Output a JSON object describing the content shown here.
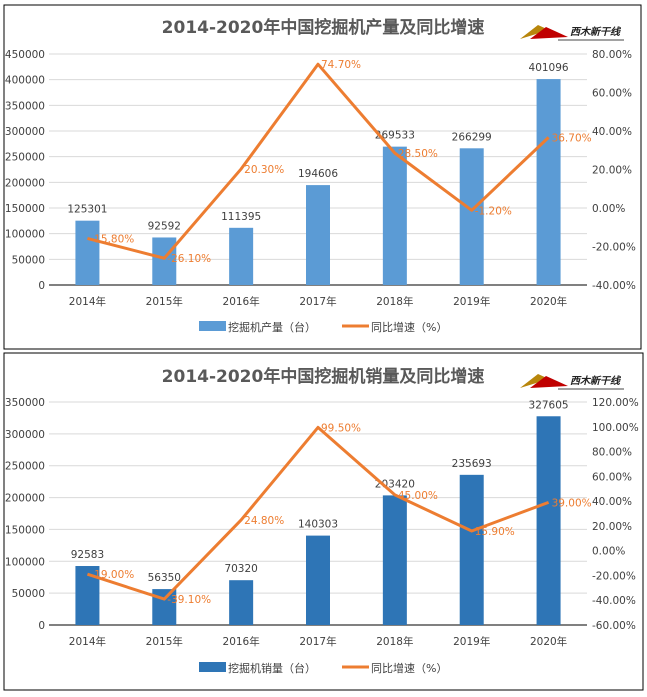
{
  "colors": {
    "bar1": "#5b9bd5",
    "bar2": "#2e75b6",
    "line": "#ed7d31",
    "grid": "#d9d9d9",
    "text": "#404040",
    "title": "#595959"
  },
  "logo_text": "西木新干线",
  "chart_data": [
    {
      "type": "bar",
      "title": "2014-2020年中国挖掘机产量及同比增速",
      "categories": [
        "2014年",
        "2015年",
        "2016年",
        "2017年",
        "2018年",
        "2019年",
        "2020年"
      ],
      "series": [
        {
          "name": "挖掘机产量（台）",
          "type": "bar",
          "axis": "left",
          "values": [
            125301,
            92592,
            111395,
            194606,
            269533,
            266299,
            401096
          ],
          "labels": [
            "125301",
            "92592",
            "111395",
            "194606",
            "269533",
            "266299",
            "401096"
          ]
        },
        {
          "name": "同比增速（%）",
          "type": "line",
          "axis": "right",
          "values": [
            -15.8,
            -26.1,
            20.3,
            74.7,
            28.5,
            -1.2,
            36.7
          ],
          "labels": [
            "-15.80%",
            "-26.10%",
            "20.30%",
            "74.70%",
            "28.50%",
            "-1.20%",
            "36.70%"
          ]
        }
      ],
      "ylim": [
        0,
        450000
      ],
      "yticks": [
        "0",
        "50000",
        "100000",
        "150000",
        "200000",
        "250000",
        "300000",
        "350000",
        "400000",
        "450000"
      ],
      "y2lim": [
        -40,
        80
      ],
      "y2ticks": [
        "-40.00%",
        "-20.00%",
        "0.00%",
        "20.00%",
        "40.00%",
        "60.00%",
        "80.00%"
      ],
      "grid": true,
      "legend": "bottom"
    },
    {
      "type": "bar",
      "title": "2014-2020年中国挖掘机销量及同比增速",
      "categories": [
        "2014年",
        "2015年",
        "2016年",
        "2017年",
        "2018年",
        "2019年",
        "2020年"
      ],
      "series": [
        {
          "name": "挖掘机销量（台）",
          "type": "bar",
          "axis": "left",
          "values": [
            92583,
            56350,
            70320,
            140303,
            203420,
            235693,
            327605
          ],
          "labels": [
            "92583",
            "56350",
            "70320",
            "140303",
            "203420",
            "235693",
            "327605"
          ]
        },
        {
          "name": "同比增速（%）",
          "type": "line",
          "axis": "right",
          "values": [
            -19.0,
            -39.1,
            24.8,
            99.5,
            45.0,
            15.9,
            39.0
          ],
          "labels": [
            "-19.00%",
            "-39.10%",
            "24.80%",
            "99.50%",
            "45.00%",
            "15.90%",
            "39.00%"
          ]
        }
      ],
      "ylim": [
        0,
        350000
      ],
      "yticks": [
        "0",
        "50000",
        "100000",
        "150000",
        "200000",
        "250000",
        "300000",
        "350000"
      ],
      "y2lim": [
        -60,
        120
      ],
      "y2ticks": [
        "-60.00%",
        "-40.00%",
        "-20.00%",
        "0.00%",
        "20.00%",
        "40.00%",
        "60.00%",
        "80.00%",
        "100.00%",
        "120.00%"
      ],
      "grid": true,
      "legend": "bottom"
    }
  ]
}
